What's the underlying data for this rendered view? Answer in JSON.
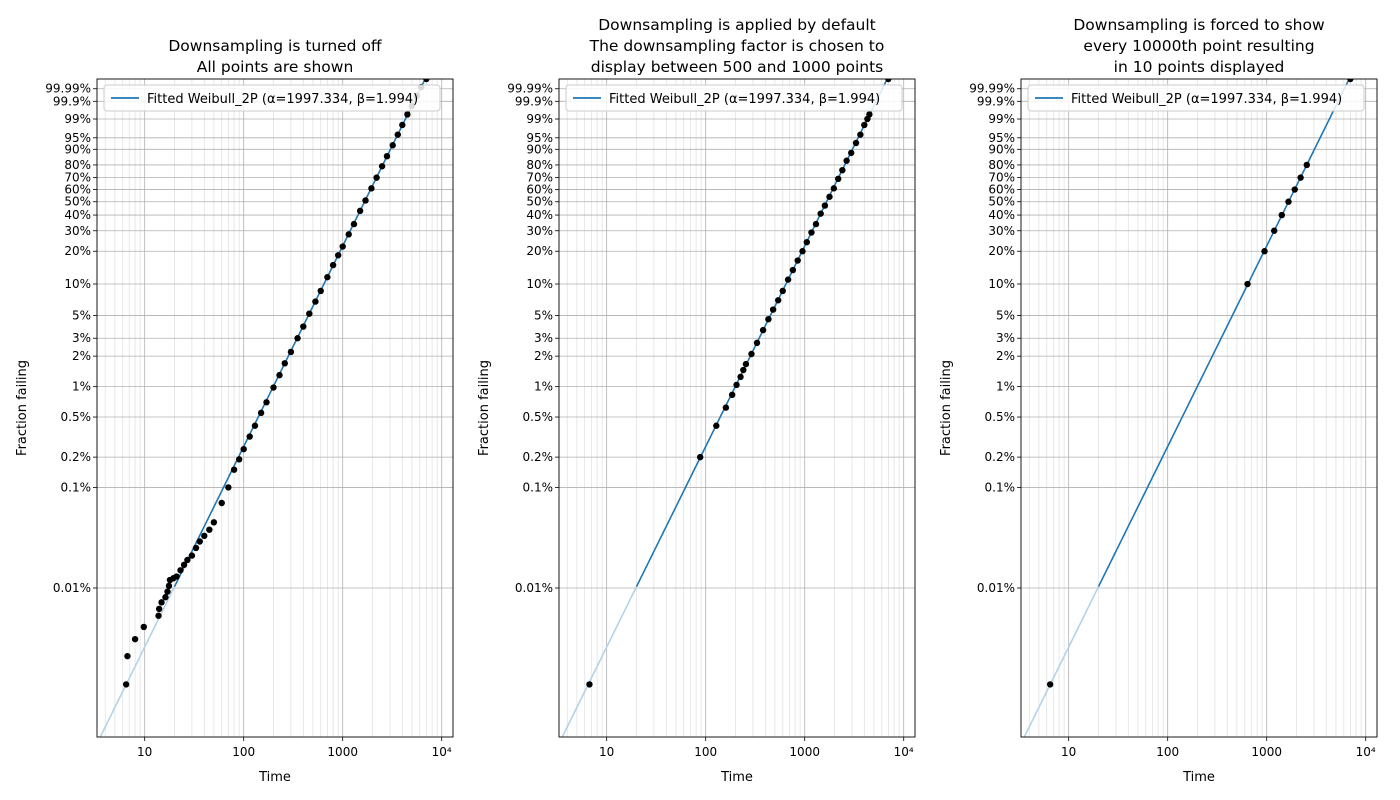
{
  "figure": {
    "background": "#ffffff",
    "line_color": "#1f77b4",
    "line_color_extrapolated": "#b3d3e8",
    "point_color": "#000000",
    "grid_color": "#b0b0b0"
  },
  "chart_data": [
    {
      "type": "scatter",
      "title_lines": [
        "Downsampling is turned off",
        "All points are shown"
      ],
      "xlabel": "Time",
      "ylabel": "Fraction failing",
      "x_scale": "log",
      "y_scale": "weibull",
      "xlim": [
        3.3,
        13000
      ],
      "ylim_fraction": [
        3.3e-06,
        0.99999
      ],
      "x_ticks": [
        {
          "value": 10,
          "label": "10"
        },
        {
          "value": 100,
          "label": "100"
        },
        {
          "value": 1000,
          "label": "1000"
        },
        {
          "value": 10000,
          "label": "10⁴"
        }
      ],
      "y_ticks": [
        {
          "value": 0.0001,
          "label": "0.01%"
        },
        {
          "value": 0.001,
          "label": "0.1%"
        },
        {
          "value": 0.002,
          "label": "0.2%"
        },
        {
          "value": 0.005,
          "label": "0.5%"
        },
        {
          "value": 0.01,
          "label": "1%"
        },
        {
          "value": 0.02,
          "label": "2%"
        },
        {
          "value": 0.03,
          "label": "3%"
        },
        {
          "value": 0.05,
          "label": "5%"
        },
        {
          "value": 0.1,
          "label": "10%"
        },
        {
          "value": 0.2,
          "label": "20%"
        },
        {
          "value": 0.3,
          "label": "30%"
        },
        {
          "value": 0.4,
          "label": "40%"
        },
        {
          "value": 0.5,
          "label": "50%"
        },
        {
          "value": 0.6,
          "label": "60%"
        },
        {
          "value": 0.7,
          "label": "70%"
        },
        {
          "value": 0.8,
          "label": "80%"
        },
        {
          "value": 0.9,
          "label": "90%"
        },
        {
          "value": 0.95,
          "label": "95%"
        },
        {
          "value": 0.99,
          "label": "99%"
        },
        {
          "value": 0.999,
          "label": "99.9%"
        },
        {
          "value": 0.9999,
          "label": "99.99%"
        }
      ],
      "grid": true,
      "legend_position": "upper-left",
      "fit": {
        "label": "Fitted Weibull_2P (α=1997.334, β=1.994)",
        "alpha": 1997.334,
        "beta": 1.994,
        "extrapolated_range": [
          3.3,
          20
        ],
        "fitted_range": [
          20,
          13000
        ]
      },
      "points": [
        [
          6.5,
          1.1e-05
        ],
        [
          6.7,
          2.1e-05
        ],
        [
          8,
          3.1e-05
        ],
        [
          9.8,
          4.1e-05
        ],
        [
          13.8,
          5.3e-05
        ],
        [
          14,
          6.2e-05
        ],
        [
          14.8,
          7.2e-05
        ],
        [
          16.2,
          8.1e-05
        ],
        [
          17,
          9.2e-05
        ],
        [
          17.6,
          0.000105
        ],
        [
          18,
          0.00012
        ],
        [
          19.5,
          0.000125
        ],
        [
          21,
          0.00013
        ],
        [
          23,
          0.00015
        ],
        [
          25,
          0.00017
        ],
        [
          27,
          0.00019
        ],
        [
          30,
          0.00021
        ],
        [
          33,
          0.00025
        ],
        [
          36,
          0.00029
        ],
        [
          40,
          0.00033
        ],
        [
          45,
          0.00038
        ],
        [
          50,
          0.00045
        ],
        [
          60,
          0.0007
        ],
        [
          70,
          0.001
        ],
        [
          80,
          0.0015
        ],
        [
          90,
          0.0019
        ],
        [
          100,
          0.0024
        ],
        [
          115,
          0.0032
        ],
        [
          130,
          0.0041
        ],
        [
          150,
          0.0055
        ],
        [
          170,
          0.007
        ],
        [
          200,
          0.0098
        ],
        [
          230,
          0.013
        ],
        [
          260,
          0.017
        ],
        [
          300,
          0.022
        ],
        [
          350,
          0.03
        ],
        [
          400,
          0.039
        ],
        [
          460,
          0.052
        ],
        [
          530,
          0.068
        ],
        [
          600,
          0.086
        ],
        [
          700,
          0.116
        ],
        [
          800,
          0.15
        ],
        [
          900,
          0.184
        ],
        [
          1000,
          0.22
        ],
        [
          1150,
          0.28
        ],
        [
          1300,
          0.34
        ],
        [
          1500,
          0.43
        ],
        [
          1700,
          0.51
        ],
        [
          1950,
          0.61
        ],
        [
          2200,
          0.7
        ],
        [
          2500,
          0.79
        ],
        [
          2800,
          0.86
        ],
        [
          3200,
          0.92
        ],
        [
          3600,
          0.96
        ],
        [
          4000,
          0.982
        ],
        [
          4500,
          0.994
        ],
        [
          5000,
          0.998
        ],
        [
          5600,
          0.9996
        ],
        [
          6200,
          0.99993
        ],
        [
          7000,
          0.99999
        ]
      ]
    },
    {
      "type": "scatter",
      "title_lines": [
        "Downsampling is applied by default",
        "The downsampling factor is chosen to",
        "display between 500 and 1000 points"
      ],
      "xlabel": "Time",
      "ylabel": "Fraction failing",
      "x_scale": "log",
      "y_scale": "weibull",
      "xlim": [
        3.3,
        13000
      ],
      "ylim_fraction": [
        3.3e-06,
        0.99999
      ],
      "x_ticks": [
        {
          "value": 10,
          "label": "10"
        },
        {
          "value": 100,
          "label": "100"
        },
        {
          "value": 1000,
          "label": "1000"
        },
        {
          "value": 10000,
          "label": "10⁴"
        }
      ],
      "y_ticks": [
        {
          "value": 0.0001,
          "label": "0.01%"
        },
        {
          "value": 0.001,
          "label": "0.1%"
        },
        {
          "value": 0.002,
          "label": "0.2%"
        },
        {
          "value": 0.005,
          "label": "0.5%"
        },
        {
          "value": 0.01,
          "label": "1%"
        },
        {
          "value": 0.02,
          "label": "2%"
        },
        {
          "value": 0.03,
          "label": "3%"
        },
        {
          "value": 0.05,
          "label": "5%"
        },
        {
          "value": 0.1,
          "label": "10%"
        },
        {
          "value": 0.2,
          "label": "20%"
        },
        {
          "value": 0.3,
          "label": "30%"
        },
        {
          "value": 0.4,
          "label": "40%"
        },
        {
          "value": 0.5,
          "label": "50%"
        },
        {
          "value": 0.6,
          "label": "60%"
        },
        {
          "value": 0.7,
          "label": "70%"
        },
        {
          "value": 0.8,
          "label": "80%"
        },
        {
          "value": 0.9,
          "label": "90%"
        },
        {
          "value": 0.95,
          "label": "95%"
        },
        {
          "value": 0.99,
          "label": "99%"
        },
        {
          "value": 0.999,
          "label": "99.9%"
        },
        {
          "value": 0.9999,
          "label": "99.99%"
        }
      ],
      "grid": true,
      "legend_position": "upper-left",
      "fit": {
        "label": "Fitted Weibull_2P (α=1997.334, β=1.994)",
        "alpha": 1997.334,
        "beta": 1.994,
        "extrapolated_range": [
          3.3,
          20
        ],
        "fitted_range": [
          20,
          13000
        ]
      },
      "points": [
        [
          6.7,
          1.1e-05
        ],
        [
          88,
          0.002
        ],
        [
          128,
          0.0041
        ],
        [
          160,
          0.0062
        ],
        [
          185,
          0.0083
        ],
        [
          205,
          0.0104
        ],
        [
          225,
          0.0125
        ],
        [
          240,
          0.0146
        ],
        [
          255,
          0.0167
        ],
        [
          290,
          0.021
        ],
        [
          330,
          0.027
        ],
        [
          380,
          0.036
        ],
        [
          430,
          0.046
        ],
        [
          480,
          0.057
        ],
        [
          540,
          0.07
        ],
        [
          600,
          0.086
        ],
        [
          680,
          0.11
        ],
        [
          760,
          0.135
        ],
        [
          850,
          0.165
        ],
        [
          950,
          0.2
        ],
        [
          1050,
          0.24
        ],
        [
          1170,
          0.29
        ],
        [
          1300,
          0.34
        ],
        [
          1450,
          0.41
        ],
        [
          1600,
          0.47
        ],
        [
          1780,
          0.54
        ],
        [
          1970,
          0.61
        ],
        [
          2180,
          0.69
        ],
        [
          2400,
          0.76
        ],
        [
          2650,
          0.83
        ],
        [
          2950,
          0.88
        ],
        [
          3300,
          0.93
        ],
        [
          3650,
          0.96
        ],
        [
          4000,
          0.982
        ],
        [
          4300,
          0.99
        ],
        [
          4500,
          0.994
        ],
        [
          7000,
          0.99999
        ]
      ]
    },
    {
      "type": "scatter",
      "title_lines": [
        "Downsampling is forced to show",
        "every 10000th point resulting",
        "in 10 points displayed"
      ],
      "xlabel": "Time",
      "ylabel": "Fraction failing",
      "x_scale": "log",
      "y_scale": "weibull",
      "xlim": [
        3.3,
        13000
      ],
      "ylim_fraction": [
        3.3e-06,
        0.99999
      ],
      "x_ticks": [
        {
          "value": 10,
          "label": "10"
        },
        {
          "value": 100,
          "label": "100"
        },
        {
          "value": 1000,
          "label": "1000"
        },
        {
          "value": 10000,
          "label": "10⁴"
        }
      ],
      "y_ticks": [
        {
          "value": 0.0001,
          "label": "0.01%"
        },
        {
          "value": 0.001,
          "label": "0.1%"
        },
        {
          "value": 0.002,
          "label": "0.2%"
        },
        {
          "value": 0.005,
          "label": "0.5%"
        },
        {
          "value": 0.01,
          "label": "1%"
        },
        {
          "value": 0.02,
          "label": "2%"
        },
        {
          "value": 0.03,
          "label": "3%"
        },
        {
          "value": 0.05,
          "label": "5%"
        },
        {
          "value": 0.1,
          "label": "10%"
        },
        {
          "value": 0.2,
          "label": "20%"
        },
        {
          "value": 0.3,
          "label": "30%"
        },
        {
          "value": 0.4,
          "label": "40%"
        },
        {
          "value": 0.5,
          "label": "50%"
        },
        {
          "value": 0.6,
          "label": "60%"
        },
        {
          "value": 0.7,
          "label": "70%"
        },
        {
          "value": 0.8,
          "label": "80%"
        },
        {
          "value": 0.9,
          "label": "90%"
        },
        {
          "value": 0.95,
          "label": "95%"
        },
        {
          "value": 0.99,
          "label": "99%"
        },
        {
          "value": 0.999,
          "label": "99.9%"
        },
        {
          "value": 0.9999,
          "label": "99.99%"
        }
      ],
      "grid": true,
      "legend_position": "upper-left",
      "fit": {
        "label": "Fitted Weibull_2P (α=1997.334, β=1.994)",
        "alpha": 1997.334,
        "beta": 1.994,
        "extrapolated_range": [
          3.3,
          20
        ],
        "fitted_range": [
          20,
          13000
        ]
      },
      "points": [
        [
          6.5,
          1.1e-05
        ],
        [
          640,
          0.1
        ],
        [
          950,
          0.2
        ],
        [
          1190,
          0.3
        ],
        [
          1420,
          0.4
        ],
        [
          1660,
          0.5
        ],
        [
          1920,
          0.6
        ],
        [
          2200,
          0.7
        ],
        [
          2540,
          0.8
        ],
        [
          7000,
          0.99999
        ]
      ]
    }
  ]
}
